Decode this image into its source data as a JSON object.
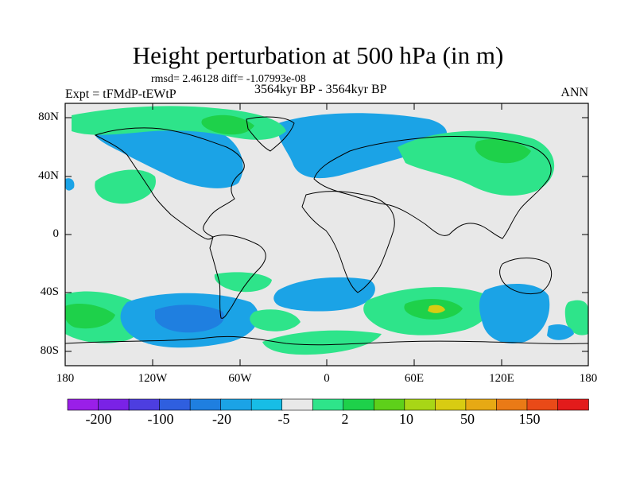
{
  "title": "Height perturbation at 500 hPa (in m)",
  "stats": "rmsd= 2.46128 diff= -1.07993e-08",
  "experiment": "Expt = tFMdP-tEWtP",
  "period": "3564kyr BP - 3564kyr BP",
  "season": "ANN",
  "y_ticks": [
    "80N",
    "40N",
    "0",
    "40S",
    "80S"
  ],
  "x_ticks": [
    "180",
    "120W",
    "60W",
    "0",
    "60E",
    "120E",
    "180"
  ],
  "colorbar": {
    "labels": [
      "-200",
      "-100",
      "-20",
      "-5",
      "2",
      "10",
      "50",
      "150"
    ],
    "colors": [
      "#9a1fe8",
      "#7a22e6",
      "#4d3ee0",
      "#2f5fdf",
      "#1f7fe0",
      "#1ba3e6",
      "#17bde6",
      "#e8e8e8",
      "#2ee48a",
      "#1ed14a",
      "#5ed01a",
      "#a8d616",
      "#d8cc12",
      "#e7a914",
      "#ea7a16",
      "#e94a18",
      "#e31b1b"
    ]
  },
  "map_colors": {
    "ocean": "#e8e8e8",
    "blue1": "#1ba3e6",
    "blue2": "#1f7fe0",
    "green1": "#2ee48a",
    "green2": "#1ed14a",
    "yellow": "#d8cc12"
  }
}
